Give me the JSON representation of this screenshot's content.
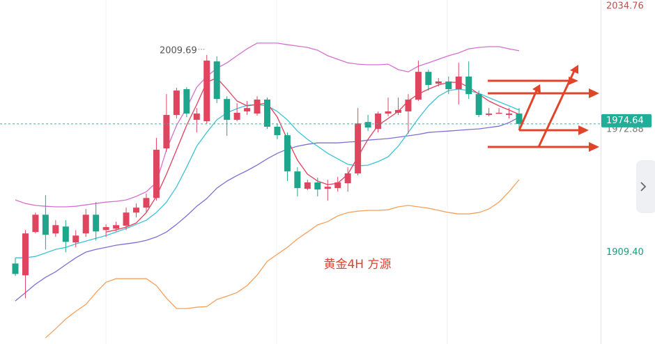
{
  "chart_data": {
    "type": "candlestick",
    "categories": [
      null,
      null,
      null,
      null,
      null,
      null,
      null,
      null,
      null,
      null,
      null,
      null,
      null,
      null,
      null,
      null,
      null,
      null,
      null,
      null,
      null,
      null,
      null,
      null,
      null,
      null,
      null,
      null,
      null,
      null,
      null,
      null,
      null,
      null,
      null,
      null,
      null,
      null,
      null,
      null,
      null,
      null,
      null,
      null,
      null,
      null,
      null,
      null,
      null,
      null,
      null
    ],
    "open": [
      1903.7,
      1897.7,
      1919.7,
      1928.5,
      1919.0,
      1922.5,
      1914.4,
      1919.0,
      1928.5,
      1920.7,
      1921.4,
      1922.9,
      1929.6,
      1932.1,
      1937.0,
      1962.2,
      1979.2,
      1992.3,
      1976.7,
      1976.0,
      2006.4,
      1987.3,
      1976.7,
      1981.0,
      1979.9,
      1987.0,
      1973.2,
      1968.9,
      1950.5,
      1941.7,
      1944.9,
      1941.7,
      1942.0,
      1944.5,
      1949.5,
      1975.6,
      1972.1,
      1979.9,
      1980.3,
      1981.0,
      1987.0,
      2001.1,
      1995.1,
      1996.2,
      1992.3,
      1998.7,
      1989.8,
      1979.2,
      1980.3,
      1979.2,
      1979.9
    ],
    "high": [
      1906.6,
      1920.7,
      1929.6,
      1938.4,
      1925.7,
      1925.7,
      1920.7,
      1931.4,
      1934.9,
      1923.6,
      1925.0,
      1932.1,
      1934.2,
      1939.2,
      1967.5,
      1989.8,
      1993.0,
      1993.3,
      1982.7,
      2009.69,
      2009.0,
      1988.7,
      1985.2,
      1986.3,
      1988.7,
      1988.0,
      1974.6,
      1970.3,
      1952.6,
      1946.3,
      1947.3,
      1946.3,
      1947.7,
      1952.6,
      1982.7,
      1979.2,
      1980.9,
      1988.0,
      1988.0,
      1989.8,
      2006.8,
      2002.2,
      1998.0,
      1998.7,
      2005.7,
      2006.4,
      1991.6,
      1982.7,
      1982.7,
      1982.7,
      1982.7
    ],
    "low": [
      1897.4,
      1886.0,
      1919.0,
      1910.8,
      1917.2,
      1909.4,
      1911.9,
      1917.2,
      1915.4,
      1917.2,
      1920.0,
      1920.7,
      1927.1,
      1929.6,
      1935.6,
      1960.4,
      1977.4,
      1978.1,
      1970.3,
      1974.6,
      1985.2,
      1968.6,
      1976.0,
      1979.2,
      1978.8,
      1972.1,
      1966.8,
      1945.6,
      1937.8,
      1941.0,
      1937.8,
      1935.6,
      1940.2,
      1940.2,
      1948.4,
      1971.0,
      1970.3,
      1978.5,
      1979.2,
      1969.6,
      1986.3,
      1991.6,
      1993.7,
      1989.8,
      1984.5,
      1987.3,
      1978.1,
      1978.5,
      1979.9,
      1977.4,
      1972.1
    ],
    "close": [
      1898.4,
      1919.0,
      1928.5,
      1918.3,
      1923.2,
      1914.7,
      1917.9,
      1928.5,
      1920.0,
      1922.2,
      1923.2,
      1929.6,
      1932.1,
      1937.0,
      1961.5,
      1979.2,
      1991.6,
      1979.9,
      1979.9,
      2006.8,
      1987.3,
      1976.7,
      1980.3,
      1982.7,
      1987.0,
      1973.2,
      1968.9,
      1950.5,
      1942.0,
      1944.9,
      1941.3,
      1942.7,
      1944.9,
      1949.5,
      1974.9,
      1972.8,
      1979.9,
      1981.0,
      1981.7,
      1987.0,
      2001.1,
      1994.4,
      1996.2,
      1992.3,
      1998.7,
      1989.8,
      1979.2,
      1979.9,
      1980.3,
      1979.9,
      1974.64
    ],
    "up_color": "#e0455f",
    "down_color": "#1ea68c",
    "series": [
      {
        "color": "#d66fcf",
        "values": [
          1936.0,
          1934.2,
          1933.2,
          1932.8,
          1932.5,
          1932.5,
          1932.8,
          1933.5,
          1934.2,
          1934.9,
          1935.3,
          1936.0,
          1937.8,
          1940.2,
          1944.9,
          1961.5,
          1973.9,
          1982.7,
          1993.3,
          1998.7,
          2002.9,
          2005.7,
          2009.3,
          2012.8,
          2015.7,
          2015.7,
          2015.7,
          2014.9,
          2014.2,
          2013.5,
          2012.1,
          2009.3,
          2007.5,
          2005.7,
          2005.0,
          2004.7,
          2004.7,
          2005.0,
          2002.2,
          2001.1,
          2004.0,
          2005.7,
          2007.5,
          2009.3,
          2010.7,
          2012.8,
          2013.5,
          2013.9,
          2013.9,
          2012.8,
          2011.8
        ]
      },
      {
        "color": "#f5a05a",
        "values": [
          null,
          null,
          null,
          1865.9,
          1870.5,
          1875.5,
          1879.4,
          1882.9,
          1888.9,
          1894.2,
          1896.0,
          1896.0,
          1896.0,
          1896.0,
          1892.5,
          1886.1,
          1880.8,
          1880.8,
          1881.5,
          1881.8,
          1885.4,
          1887.1,
          1888.9,
          1892.5,
          1897.8,
          1904.8,
          1908.4,
          1911.9,
          1916.2,
          1919.7,
          1923.3,
          1925.0,
          1927.9,
          1929.6,
          1930.3,
          1930.7,
          1930.7,
          1931.0,
          1932.5,
          1933.2,
          1932.5,
          1931.8,
          1930.7,
          1929.6,
          1928.9,
          1928.9,
          1929.6,
          1931.4,
          1934.9,
          1940.2,
          1946.3
        ]
      },
      {
        "color": "#7b6fd6",
        "values": [
          1884.7,
          1888.9,
          1893.2,
          1896.7,
          1899.5,
          1903.1,
          1906.6,
          1909.5,
          1910.9,
          1911.9,
          1913.0,
          1913.7,
          1914.4,
          1915.5,
          1917.2,
          1919.7,
          1923.6,
          1927.9,
          1932.8,
          1936.7,
          1942.0,
          1945.6,
          1948.4,
          1950.9,
          1953.7,
          1956.9,
          1959.7,
          1961.8,
          1963.3,
          1964.3,
          1965.0,
          1965.0,
          1965.0,
          1965.4,
          1965.7,
          1966.4,
          1966.8,
          1967.2,
          1967.9,
          1968.6,
          1969.3,
          1970.3,
          1970.7,
          1971.0,
          1971.4,
          1971.8,
          1972.1,
          1972.8,
          1973.5,
          1975.3,
          1978.1
        ]
      },
      {
        "color": "#3cc3d6",
        "values": [
          1906.6,
          1906.6,
          1907.3,
          1909.1,
          1910.9,
          1911.9,
          1913.7,
          1915.1,
          1916.5,
          1917.9,
          1919.7,
          1921.5,
          1923.6,
          1925.7,
          1929.6,
          1934.9,
          1942.7,
          1952.6,
          1963.3,
          1970.3,
          1976.7,
          1980.3,
          1982.4,
          1984.1,
          1984.5,
          1983.8,
          1981.0,
          1976.7,
          1971.0,
          1966.8,
          1963.3,
          1959.7,
          1956.9,
          1954.1,
          1953.3,
          1953.7,
          1955.5,
          1957.9,
          1963.3,
          1970.3,
          1977.4,
          1983.8,
          1988.7,
          1991.6,
          1992.3,
          1991.6,
          1990.2,
          1988.0,
          1985.9,
          1983.8,
          1981.7
        ]
      },
      {
        "color": "#e0405e",
        "values": [
          null,
          null,
          null,
          null,
          null,
          null,
          null,
          null,
          null,
          1919.7,
          1920.8,
          1922.2,
          1924.3,
          1929.6,
          1937.8,
          1949.1,
          1961.5,
          1973.9,
          1984.5,
          1995.8,
          1998.0,
          1992.3,
          1986.3,
          1983.8,
          1984.5,
          1985.2,
          1978.1,
          1966.8,
          1956.2,
          1949.1,
          1945.6,
          1943.8,
          1944.5,
          1949.1,
          1957.9,
          1966.8,
          1973.9,
          1977.4,
          1981.0,
          1986.3,
          1989.8,
          1992.3,
          1994.4,
          1995.8,
          1995.8,
          1993.3,
          1989.8,
          1986.3,
          1983.8,
          1981.7,
          1979.5
        ]
      }
    ],
    "ylim": [
      1862.8,
      2037.6
    ],
    "yticks": [
      2034.76,
      {
        "value": 1909.4,
        "label": "1909.40"
      }
    ],
    "last_price": 1974.64,
    "price_marker": 1972.88,
    "annotation": "黄金4H  方源"
  }
}
